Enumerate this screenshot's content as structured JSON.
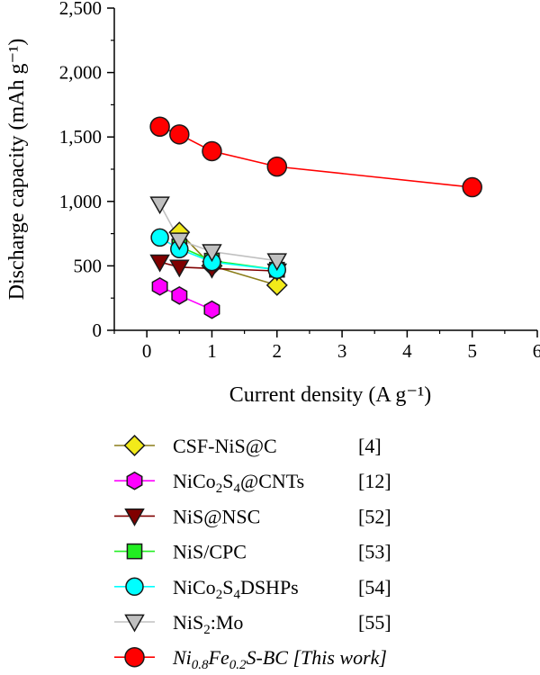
{
  "chart_data": {
    "type": "line",
    "xlabel": "Current density (A g⁻¹)",
    "ylabel": "Discharge capacity (mAh g⁻¹)",
    "xlim": [
      -0.5,
      6
    ],
    "ylim": [
      0,
      2500
    ],
    "xticks": [
      0,
      1,
      2,
      3,
      4,
      5,
      6
    ],
    "yticks": [
      0,
      500,
      1000,
      1500,
      2000,
      2500
    ],
    "xtick_labels": [
      "0",
      "1",
      "2",
      "3",
      "4",
      "5",
      "6"
    ],
    "ytick_labels": [
      "0",
      "500",
      "1,000",
      "1,500",
      "2,000",
      "2,500"
    ],
    "grid": false,
    "legend_position": "below",
    "series": [
      {
        "name": "CSF-NiS@C",
        "ref": "[4]",
        "marker": "diamond",
        "color": "#f2ea1a",
        "line_color": "#8b7d1a",
        "x": [
          0.5,
          1,
          2
        ],
        "y": [
          760,
          500,
          350
        ]
      },
      {
        "name": "NiCo2S4@CNTs",
        "ref": "[12]",
        "marker": "hexagon",
        "color": "#ff00ff",
        "line_color": "#ff00ff",
        "x": [
          0.2,
          0.5,
          1
        ],
        "y": [
          340,
          270,
          160
        ]
      },
      {
        "name": "NiS@NSC",
        "ref": "[52]",
        "marker": "triangle-down",
        "color": "#800000",
        "line_color": "#800000",
        "x": [
          0.2,
          0.5,
          1,
          2
        ],
        "y": [
          530,
          490,
          480,
          460
        ]
      },
      {
        "name": "NiS/CPC",
        "ref": "[53]",
        "marker": "square",
        "color": "#22ee22",
        "line_color": "#22ee22",
        "x": [
          0.5,
          1,
          2
        ],
        "y": [
          650,
          540,
          470
        ]
      },
      {
        "name": "NiCo2S4DSHPs",
        "ref": "[54]",
        "marker": "circle",
        "color": "#00ffff",
        "line_color": "#00ffff",
        "x": [
          0.2,
          0.5,
          1,
          2
        ],
        "y": [
          720,
          630,
          530,
          470
        ]
      },
      {
        "name": "NiS2:Mo",
        "ref": "[55]",
        "marker": "triangle-down",
        "color": "#c0c0c0",
        "line_color": "#c0c0c0",
        "x": [
          0.2,
          0.5,
          1,
          2
        ],
        "y": [
          980,
          700,
          610,
          540
        ]
      },
      {
        "name": "Ni0.8Fe0.2S-BC [This work]",
        "ref": "",
        "marker": "circle",
        "color": "#ff0000",
        "line_color": "#ff0000",
        "x": [
          0.2,
          0.5,
          1,
          2,
          5
        ],
        "y": [
          1580,
          1520,
          1390,
          1270,
          1110
        ]
      }
    ],
    "legend": [
      {
        "pre": "CSF-NiS@C",
        "sub": "",
        "post": "",
        "ref": "[4]",
        "italic": false
      },
      {
        "pre": "NiCo",
        "sub": "2",
        "pre2": "S",
        "sub2": "4",
        "post": "@CNTs",
        "ref": "[12]",
        "italic": false
      },
      {
        "pre": "NiS@NSC",
        "sub": "",
        "post": "",
        "ref": "[52]",
        "italic": false
      },
      {
        "pre": "NiS/CPC",
        "sub": "",
        "post": "",
        "ref": "[53]",
        "italic": false
      },
      {
        "pre": "NiCo",
        "sub": "2",
        "pre2": "S",
        "sub2": "4",
        "post": "DSHPs",
        "ref": "[54]",
        "italic": false
      },
      {
        "pre": "NiS",
        "sub": "2",
        "post": ":Mo",
        "ref": "[55]",
        "italic": false
      },
      {
        "pre": "Ni",
        "sub": "0.8",
        "pre2": "Fe",
        "sub2": "0.2",
        "post": "S-BC [This work]",
        "ref": "",
        "italic": true
      }
    ]
  }
}
